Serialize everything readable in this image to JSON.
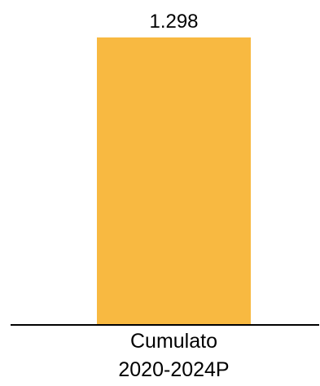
{
  "chart_data": {
    "type": "bar",
    "categories": [
      "Cumulato 2020-2024P"
    ],
    "category_lines": [
      [
        "Cumulato",
        "2020-2024P"
      ]
    ],
    "values": [
      1298
    ],
    "data_labels": [
      "1.298"
    ],
    "ylim": [
      0,
      1298
    ],
    "grid": false,
    "legend": "none",
    "colors": {
      "bar": "#F8B941",
      "axis": "#000000",
      "text": "#000000"
    }
  }
}
